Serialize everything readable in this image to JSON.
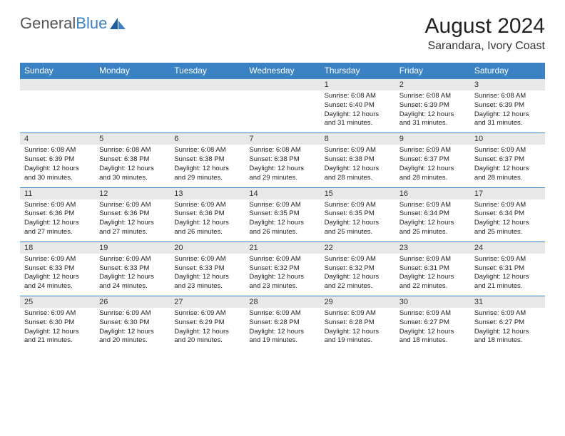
{
  "logo": {
    "text1": "General",
    "text2": "Blue"
  },
  "title": "August 2024",
  "location": "Sarandara, Ivory Coast",
  "colors": {
    "header_bg": "#3b82c4",
    "daynum_bg": "#e8e8e8",
    "border": "#3b82c4"
  },
  "days": [
    "Sunday",
    "Monday",
    "Tuesday",
    "Wednesday",
    "Thursday",
    "Friday",
    "Saturday"
  ],
  "weeks": [
    [
      {
        "n": "",
        "sunrise": "",
        "sunset": "",
        "daylight": ""
      },
      {
        "n": "",
        "sunrise": "",
        "sunset": "",
        "daylight": ""
      },
      {
        "n": "",
        "sunrise": "",
        "sunset": "",
        "daylight": ""
      },
      {
        "n": "",
        "sunrise": "",
        "sunset": "",
        "daylight": ""
      },
      {
        "n": "1",
        "sunrise": "Sunrise: 6:08 AM",
        "sunset": "Sunset: 6:40 PM",
        "daylight": "Daylight: 12 hours and 31 minutes."
      },
      {
        "n": "2",
        "sunrise": "Sunrise: 6:08 AM",
        "sunset": "Sunset: 6:39 PM",
        "daylight": "Daylight: 12 hours and 31 minutes."
      },
      {
        "n": "3",
        "sunrise": "Sunrise: 6:08 AM",
        "sunset": "Sunset: 6:39 PM",
        "daylight": "Daylight: 12 hours and 31 minutes."
      }
    ],
    [
      {
        "n": "4",
        "sunrise": "Sunrise: 6:08 AM",
        "sunset": "Sunset: 6:39 PM",
        "daylight": "Daylight: 12 hours and 30 minutes."
      },
      {
        "n": "5",
        "sunrise": "Sunrise: 6:08 AM",
        "sunset": "Sunset: 6:38 PM",
        "daylight": "Daylight: 12 hours and 30 minutes."
      },
      {
        "n": "6",
        "sunrise": "Sunrise: 6:08 AM",
        "sunset": "Sunset: 6:38 PM",
        "daylight": "Daylight: 12 hours and 29 minutes."
      },
      {
        "n": "7",
        "sunrise": "Sunrise: 6:08 AM",
        "sunset": "Sunset: 6:38 PM",
        "daylight": "Daylight: 12 hours and 29 minutes."
      },
      {
        "n": "8",
        "sunrise": "Sunrise: 6:09 AM",
        "sunset": "Sunset: 6:38 PM",
        "daylight": "Daylight: 12 hours and 28 minutes."
      },
      {
        "n": "9",
        "sunrise": "Sunrise: 6:09 AM",
        "sunset": "Sunset: 6:37 PM",
        "daylight": "Daylight: 12 hours and 28 minutes."
      },
      {
        "n": "10",
        "sunrise": "Sunrise: 6:09 AM",
        "sunset": "Sunset: 6:37 PM",
        "daylight": "Daylight: 12 hours and 28 minutes."
      }
    ],
    [
      {
        "n": "11",
        "sunrise": "Sunrise: 6:09 AM",
        "sunset": "Sunset: 6:36 PM",
        "daylight": "Daylight: 12 hours and 27 minutes."
      },
      {
        "n": "12",
        "sunrise": "Sunrise: 6:09 AM",
        "sunset": "Sunset: 6:36 PM",
        "daylight": "Daylight: 12 hours and 27 minutes."
      },
      {
        "n": "13",
        "sunrise": "Sunrise: 6:09 AM",
        "sunset": "Sunset: 6:36 PM",
        "daylight": "Daylight: 12 hours and 26 minutes."
      },
      {
        "n": "14",
        "sunrise": "Sunrise: 6:09 AM",
        "sunset": "Sunset: 6:35 PM",
        "daylight": "Daylight: 12 hours and 26 minutes."
      },
      {
        "n": "15",
        "sunrise": "Sunrise: 6:09 AM",
        "sunset": "Sunset: 6:35 PM",
        "daylight": "Daylight: 12 hours and 25 minutes."
      },
      {
        "n": "16",
        "sunrise": "Sunrise: 6:09 AM",
        "sunset": "Sunset: 6:34 PM",
        "daylight": "Daylight: 12 hours and 25 minutes."
      },
      {
        "n": "17",
        "sunrise": "Sunrise: 6:09 AM",
        "sunset": "Sunset: 6:34 PM",
        "daylight": "Daylight: 12 hours and 25 minutes."
      }
    ],
    [
      {
        "n": "18",
        "sunrise": "Sunrise: 6:09 AM",
        "sunset": "Sunset: 6:33 PM",
        "daylight": "Daylight: 12 hours and 24 minutes."
      },
      {
        "n": "19",
        "sunrise": "Sunrise: 6:09 AM",
        "sunset": "Sunset: 6:33 PM",
        "daylight": "Daylight: 12 hours and 24 minutes."
      },
      {
        "n": "20",
        "sunrise": "Sunrise: 6:09 AM",
        "sunset": "Sunset: 6:33 PM",
        "daylight": "Daylight: 12 hours and 23 minutes."
      },
      {
        "n": "21",
        "sunrise": "Sunrise: 6:09 AM",
        "sunset": "Sunset: 6:32 PM",
        "daylight": "Daylight: 12 hours and 23 minutes."
      },
      {
        "n": "22",
        "sunrise": "Sunrise: 6:09 AM",
        "sunset": "Sunset: 6:32 PM",
        "daylight": "Daylight: 12 hours and 22 minutes."
      },
      {
        "n": "23",
        "sunrise": "Sunrise: 6:09 AM",
        "sunset": "Sunset: 6:31 PM",
        "daylight": "Daylight: 12 hours and 22 minutes."
      },
      {
        "n": "24",
        "sunrise": "Sunrise: 6:09 AM",
        "sunset": "Sunset: 6:31 PM",
        "daylight": "Daylight: 12 hours and 21 minutes."
      }
    ],
    [
      {
        "n": "25",
        "sunrise": "Sunrise: 6:09 AM",
        "sunset": "Sunset: 6:30 PM",
        "daylight": "Daylight: 12 hours and 21 minutes."
      },
      {
        "n": "26",
        "sunrise": "Sunrise: 6:09 AM",
        "sunset": "Sunset: 6:30 PM",
        "daylight": "Daylight: 12 hours and 20 minutes."
      },
      {
        "n": "27",
        "sunrise": "Sunrise: 6:09 AM",
        "sunset": "Sunset: 6:29 PM",
        "daylight": "Daylight: 12 hours and 20 minutes."
      },
      {
        "n": "28",
        "sunrise": "Sunrise: 6:09 AM",
        "sunset": "Sunset: 6:28 PM",
        "daylight": "Daylight: 12 hours and 19 minutes."
      },
      {
        "n": "29",
        "sunrise": "Sunrise: 6:09 AM",
        "sunset": "Sunset: 6:28 PM",
        "daylight": "Daylight: 12 hours and 19 minutes."
      },
      {
        "n": "30",
        "sunrise": "Sunrise: 6:09 AM",
        "sunset": "Sunset: 6:27 PM",
        "daylight": "Daylight: 12 hours and 18 minutes."
      },
      {
        "n": "31",
        "sunrise": "Sunrise: 6:09 AM",
        "sunset": "Sunset: 6:27 PM",
        "daylight": "Daylight: 12 hours and 18 minutes."
      }
    ]
  ]
}
